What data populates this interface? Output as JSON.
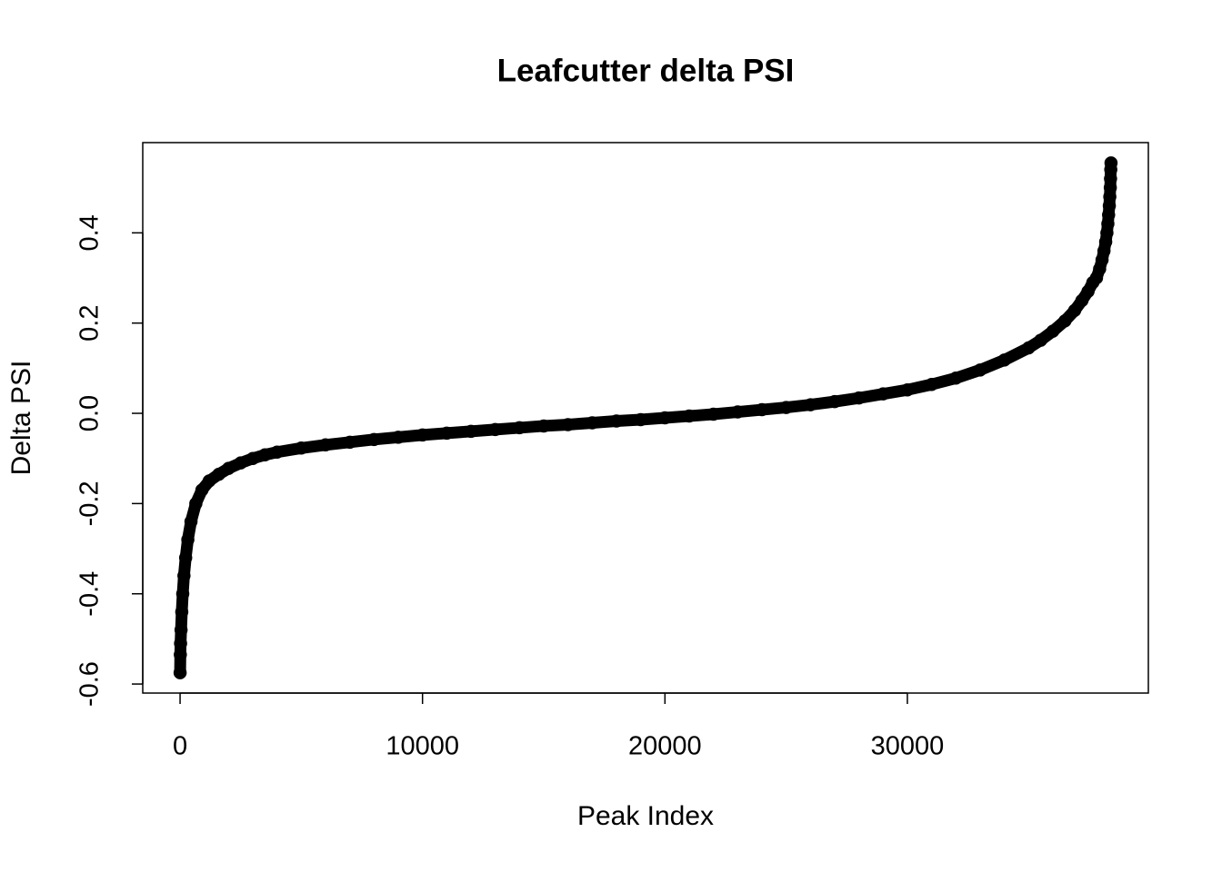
{
  "chart_data": {
    "type": "scatter",
    "title": "Leafcutter delta PSI",
    "x_label": "Peak Index",
    "y_label": "Delta PSI",
    "x": [
      1,
      10,
      20,
      40,
      70,
      110,
      160,
      230,
      320,
      450,
      650,
      900,
      1200,
      1600,
      2000,
      2500,
      3000,
      3500,
      4000,
      5000,
      6000,
      7000,
      8000,
      9000,
      10000,
      11000,
      12000,
      13000,
      14000,
      15000,
      16000,
      17000,
      18000,
      19000,
      20000,
      21000,
      22000,
      23000,
      24000,
      25000,
      26000,
      27000,
      28000,
      29000,
      30000,
      31000,
      32000,
      33000,
      34000,
      35000,
      35500,
      36000,
      36500,
      36900,
      37200,
      37450,
      37650,
      37800,
      37930,
      38030,
      38110,
      38180,
      38230,
      38270,
      38300,
      38330,
      38350,
      38370,
      38380,
      38390,
      38400
    ],
    "values": [
      -0.575,
      -0.535,
      -0.51,
      -0.48,
      -0.44,
      -0.4,
      -0.36,
      -0.32,
      -0.28,
      -0.24,
      -0.2,
      -0.17,
      -0.15,
      -0.135,
      -0.122,
      -0.11,
      -0.1,
      -0.092,
      -0.086,
      -0.077,
      -0.07,
      -0.064,
      -0.058,
      -0.053,
      -0.048,
      -0.044,
      -0.04,
      -0.036,
      -0.032,
      -0.028,
      -0.025,
      -0.021,
      -0.017,
      -0.014,
      -0.01,
      -0.006,
      -0.002,
      0.003,
      0.008,
      0.013,
      0.019,
      0.026,
      0.034,
      0.043,
      0.052,
      0.064,
      0.078,
      0.096,
      0.118,
      0.145,
      0.162,
      0.182,
      0.205,
      0.228,
      0.25,
      0.27,
      0.29,
      0.3,
      0.32,
      0.34,
      0.36,
      0.38,
      0.4,
      0.42,
      0.44,
      0.46,
      0.48,
      0.5,
      0.52,
      0.54,
      0.555
    ],
    "color": "#000000",
    "xlim": [
      -1540,
      39940
    ],
    "xticks": [
      0,
      10000,
      20000,
      30000
    ],
    "ylim": [
      -0.62,
      0.6
    ],
    "yticks": [
      {
        "value": -0.6,
        "label": "-0.6"
      },
      {
        "value": -0.4,
        "label": "-0.4"
      },
      {
        "value": -0.2,
        "label": "-0.2"
      },
      {
        "value": 0,
        "label": "0.0"
      },
      {
        "value": 0.2,
        "label": "0.2"
      },
      {
        "value": 0.4,
        "label": "0.4"
      }
    ],
    "grid": false
  }
}
